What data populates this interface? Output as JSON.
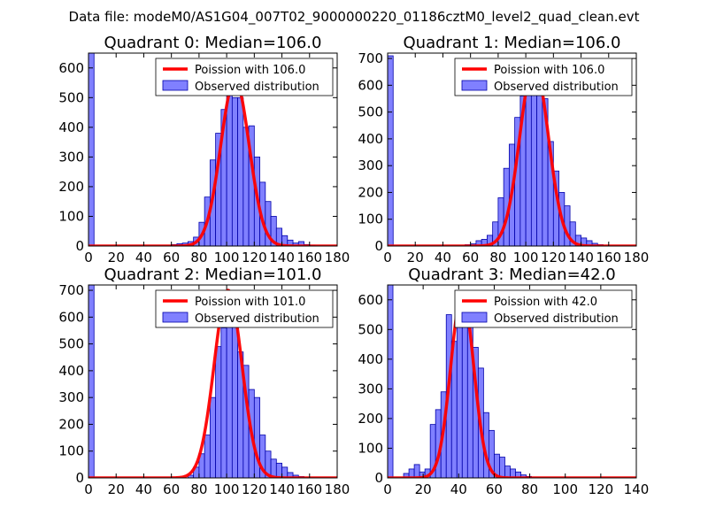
{
  "suptitle": "Data file: modeM0/AS1G04_007T02_9000000220_01186cztM0_level2_quad_clean.evt",
  "colors": {
    "observed_fill": "#8080ff",
    "observed_edge": "#0000aa",
    "poisson": "#ff0000"
  },
  "chart_data": [
    {
      "type": "bar",
      "title": "Quadrant 0: Median=106.0",
      "xlim": [
        0,
        180
      ],
      "ylim": [
        0,
        650
      ],
      "xticks": [
        0,
        20,
        40,
        60,
        80,
        100,
        120,
        140,
        160,
        180
      ],
      "yticks": [
        0,
        100,
        200,
        300,
        400,
        500,
        600
      ],
      "bin_width": 4,
      "bins": [
        [
          0,
          650
        ],
        [
          60,
          5
        ],
        [
          64,
          8
        ],
        [
          68,
          10
        ],
        [
          72,
          15
        ],
        [
          76,
          30
        ],
        [
          80,
          80
        ],
        [
          84,
          165
        ],
        [
          88,
          290
        ],
        [
          92,
          380
        ],
        [
          96,
          460
        ],
        [
          100,
          570
        ],
        [
          104,
          500
        ],
        [
          108,
          500
        ],
        [
          112,
          400
        ],
        [
          116,
          405
        ],
        [
          120,
          300
        ],
        [
          124,
          215
        ],
        [
          128,
          150
        ],
        [
          132,
          100
        ],
        [
          136,
          60
        ],
        [
          140,
          35
        ],
        [
          144,
          20
        ],
        [
          148,
          10
        ],
        [
          152,
          15
        ],
        [
          156,
          5
        ],
        [
          160,
          3
        ]
      ],
      "poisson_label": "Poission with 106.0",
      "observed_label": "Observed distribution",
      "poisson_mean": 106.0,
      "poisson_peak": 560
    },
    {
      "type": "bar",
      "title": "Quadrant 1: Median=106.0",
      "xlim": [
        0,
        180
      ],
      "ylim": [
        0,
        720
      ],
      "xticks": [
        0,
        20,
        40,
        60,
        80,
        100,
        120,
        140,
        160,
        180
      ],
      "yticks": [
        0,
        100,
        200,
        300,
        400,
        500,
        600,
        700
      ],
      "bin_width": 4,
      "bins": [
        [
          0,
          710
        ],
        [
          56,
          5
        ],
        [
          60,
          8
        ],
        [
          64,
          20
        ],
        [
          68,
          25
        ],
        [
          72,
          40
        ],
        [
          76,
          90
        ],
        [
          80,
          180
        ],
        [
          84,
          290
        ],
        [
          88,
          380
        ],
        [
          92,
          480
        ],
        [
          96,
          560
        ],
        [
          100,
          600
        ],
        [
          104,
          650
        ],
        [
          108,
          600
        ],
        [
          112,
          550
        ],
        [
          116,
          390
        ],
        [
          120,
          280
        ],
        [
          124,
          200
        ],
        [
          128,
          150
        ],
        [
          132,
          90
        ],
        [
          136,
          40
        ],
        [
          140,
          30
        ],
        [
          144,
          20
        ],
        [
          148,
          10
        ],
        [
          152,
          5
        ]
      ],
      "poisson_label": "Poission with 106.0",
      "observed_label": "Observed distribution",
      "poisson_mean": 106.0,
      "poisson_peak": 680
    },
    {
      "type": "bar",
      "title": "Quadrant 2: Median=101.0",
      "xlim": [
        0,
        180
      ],
      "ylim": [
        0,
        720
      ],
      "xticks": [
        0,
        20,
        40,
        60,
        80,
        100,
        120,
        140,
        160,
        180
      ],
      "yticks": [
        0,
        100,
        200,
        300,
        400,
        500,
        600,
        700
      ],
      "bin_width": 4,
      "bins": [
        [
          0,
          720
        ],
        [
          72,
          10
        ],
        [
          76,
          40
        ],
        [
          80,
          90
        ],
        [
          84,
          160
        ],
        [
          88,
          300
        ],
        [
          92,
          490
        ],
        [
          96,
          560
        ],
        [
          100,
          650
        ],
        [
          104,
          580
        ],
        [
          108,
          470
        ],
        [
          112,
          420
        ],
        [
          116,
          330
        ],
        [
          120,
          300
        ],
        [
          124,
          160
        ],
        [
          128,
          100
        ],
        [
          132,
          70
        ],
        [
          136,
          55
        ],
        [
          140,
          40
        ],
        [
          144,
          20
        ],
        [
          148,
          10
        ],
        [
          152,
          5
        ]
      ],
      "poisson_label": "Poission with 101.0",
      "observed_label": "Observed distribution",
      "poisson_mean": 101.0,
      "poisson_peak": 700
    },
    {
      "type": "bar",
      "title": "Quadrant 3: Median=42.0",
      "xlim": [
        0,
        140
      ],
      "ylim": [
        0,
        650
      ],
      "xticks": [
        0,
        20,
        40,
        60,
        80,
        100,
        120,
        140
      ],
      "yticks": [
        0,
        100,
        200,
        300,
        400,
        500,
        600
      ],
      "bin_width": 3,
      "bins": [
        [
          0,
          650
        ],
        [
          9,
          15
        ],
        [
          12,
          30
        ],
        [
          15,
          45
        ],
        [
          18,
          20
        ],
        [
          21,
          30
        ],
        [
          24,
          180
        ],
        [
          27,
          230
        ],
        [
          30,
          290
        ],
        [
          33,
          550
        ],
        [
          36,
          460
        ],
        [
          39,
          620
        ],
        [
          42,
          600
        ],
        [
          45,
          520
        ],
        [
          48,
          440
        ],
        [
          51,
          370
        ],
        [
          54,
          220
        ],
        [
          57,
          160
        ],
        [
          60,
          80
        ],
        [
          63,
          70
        ],
        [
          66,
          40
        ],
        [
          69,
          30
        ],
        [
          72,
          20
        ],
        [
          75,
          10
        ],
        [
          78,
          5
        ]
      ],
      "poisson_label": "Poission with 42.0",
      "observed_label": "Observed distribution",
      "poisson_mean": 42.0,
      "poisson_peak": 620
    }
  ]
}
